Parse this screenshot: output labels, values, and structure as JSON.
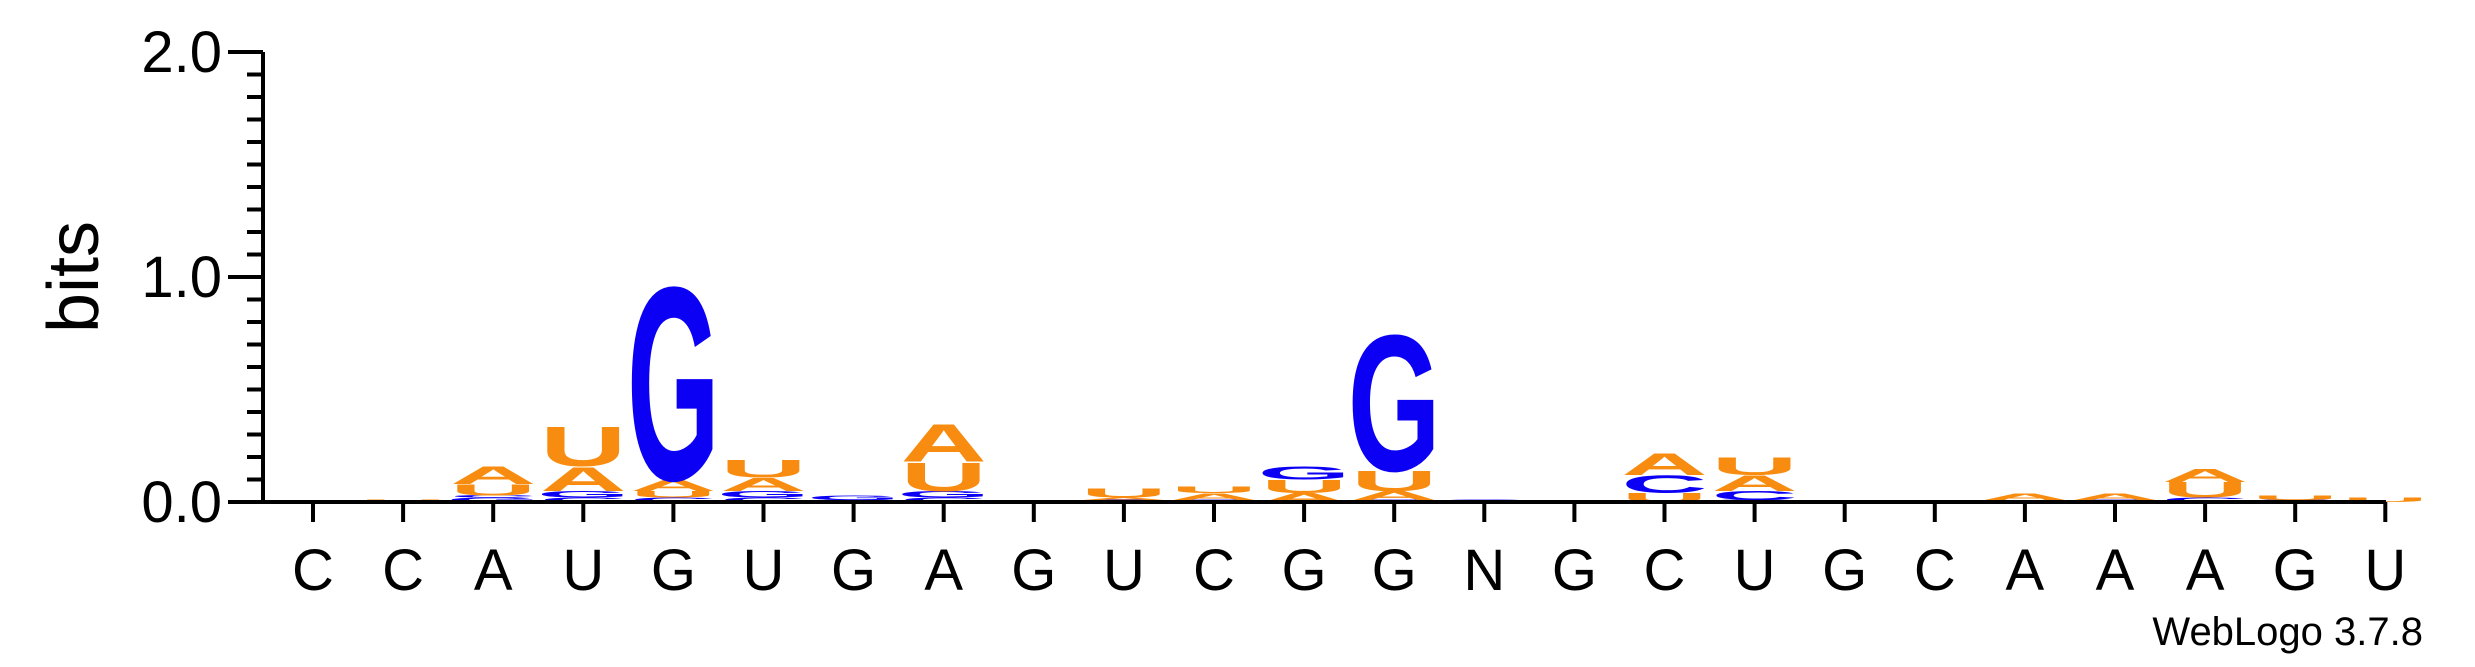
{
  "chart_data": {
    "type": "sequence-logo",
    "ylabel": "bits",
    "ylim": [
      0,
      2.0
    ],
    "y_ticks": [
      "0.0",
      "1.0",
      "2.0"
    ],
    "y_tick_values": [
      0,
      1.0,
      2.0
    ],
    "x_labels": [
      "C",
      "C",
      "A",
      "U",
      "G",
      "U",
      "G",
      "A",
      "G",
      "U",
      "C",
      "G",
      "G",
      "N",
      "G",
      "C",
      "U",
      "G",
      "C",
      "A",
      "A",
      "A",
      "G",
      "U"
    ],
    "colors": {
      "A": "#f88c10",
      "U": "#f88c10",
      "G": "#0c00f4",
      "C": "#0c00f4"
    },
    "positions": [
      [],
      [
        [
          "U",
          0.01
        ]
      ],
      [
        [
          "G",
          0.02
        ],
        [
          "C",
          0.01
        ],
        [
          "U",
          0.05
        ],
        [
          "A",
          0.08
        ]
      ],
      [
        [
          "C",
          0.02
        ],
        [
          "G",
          0.03
        ],
        [
          "A",
          0.11
        ],
        [
          "U",
          0.18
        ]
      ],
      [
        [
          "C",
          0.02
        ],
        [
          "U",
          0.03
        ],
        [
          "A",
          0.05
        ],
        [
          "G",
          0.88
        ]
      ],
      [
        [
          "C",
          0.02
        ],
        [
          "G",
          0.03
        ],
        [
          "A",
          0.06
        ],
        [
          "U",
          0.08
        ]
      ],
      [
        [
          "C",
          0.01
        ],
        [
          "G",
          0.02
        ]
      ],
      [
        [
          "C",
          0.02
        ],
        [
          "G",
          0.03
        ],
        [
          "U",
          0.13
        ],
        [
          "A",
          0.17
        ]
      ],
      [],
      [
        [
          "G",
          0.01
        ],
        [
          "A",
          0.01
        ],
        [
          "U",
          0.04
        ]
      ],
      [
        [
          "C",
          0.01
        ],
        [
          "A",
          0.03
        ],
        [
          "U",
          0.03
        ]
      ],
      [
        [
          "A",
          0.04
        ],
        [
          "U",
          0.06
        ],
        [
          "G",
          0.06
        ]
      ],
      [
        [
          "C",
          0.01
        ],
        [
          "A",
          0.04
        ],
        [
          "U",
          0.09
        ],
        [
          "G",
          0.62
        ]
      ],
      [
        [
          "G",
          0.01
        ]
      ],
      [],
      [
        [
          "U",
          0.04
        ],
        [
          "C",
          0.08
        ],
        [
          "A",
          0.1
        ]
      ],
      [
        [
          "G",
          0.01
        ],
        [
          "C",
          0.04
        ],
        [
          "A",
          0.07
        ],
        [
          "U",
          0.08
        ]
      ],
      [],
      [],
      [
        [
          "U",
          0.01
        ],
        [
          "A",
          0.03
        ]
      ],
      [
        [
          "C",
          0.01
        ],
        [
          "A",
          0.03
        ]
      ],
      [
        [
          "C",
          0.02
        ],
        [
          "U",
          0.07
        ],
        [
          "A",
          0.06
        ]
      ],
      [
        [
          "G",
          0.01
        ],
        [
          "U",
          0.02
        ]
      ],
      [
        [
          "U",
          0.02
        ]
      ]
    ]
  },
  "credit": "WebLogo 3.7.8"
}
